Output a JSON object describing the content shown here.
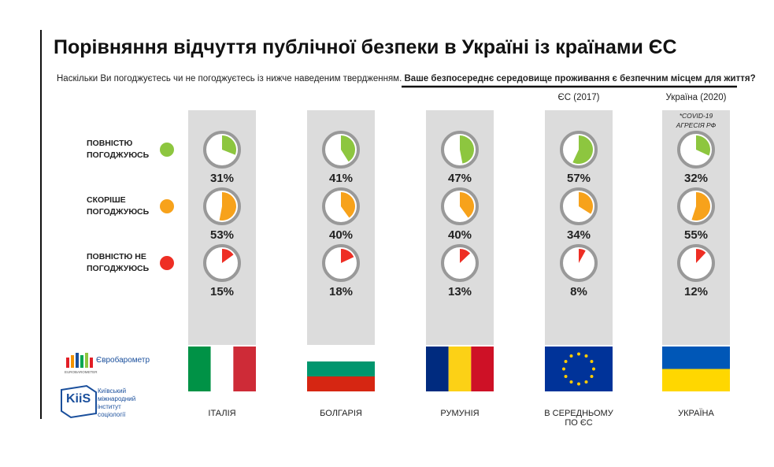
{
  "chart_data": {
    "type": "gauge",
    "title": "Порівняння відчуття публічної безпеки в Україні із країнами ЄС",
    "subtitle": "Наскільки Ви погоджуєтесь чи не погоджуєтесь із нижче наведеним твердженням.",
    "question": "Ваше безпосереднє середовище проживання є безпечним місцем для життя?",
    "categories": [
      "ІТАЛІЯ",
      "БОЛГАРІЯ",
      "РУМУНІЯ",
      "В СЕРЕДНЬОМУ ПО ЄС",
      "УКРАЇНА"
    ],
    "column_headers": [
      null,
      null,
      null,
      "ЄС (2017)",
      "Україна (2020)"
    ],
    "note": [
      "*COVID-19",
      "АГРЕСІЯ РФ"
    ],
    "series": [
      {
        "name": "ПОВНІСТЮ ПОГОДЖУЮСЬ",
        "color": "#8dc63f",
        "values": [
          31,
          41,
          47,
          57,
          32
        ],
        "value_labels": [
          "31%",
          "41%",
          "47%",
          "57%",
          "32%"
        ]
      },
      {
        "name": "СКОРІШЕ ПОГОДЖУЮСЬ",
        "color": "#f7a21b",
        "values": [
          53,
          40,
          40,
          34,
          55
        ],
        "value_labels": [
          "53%",
          "40%",
          "40%",
          "34%",
          "55%"
        ]
      },
      {
        "name": "ПОВНІСТЮ НЕ ПОГОДЖУЮСЬ",
        "color": "#ee2e24",
        "values": [
          15,
          18,
          13,
          8,
          12
        ],
        "value_labels": [
          "15%",
          "18%",
          "13%",
          "8%",
          "12%"
        ]
      }
    ],
    "sources": {
      "eurobarometer": "Євробарометр",
      "eurobarometer_small": "EUROBAROMETER",
      "kiis": "KiiS",
      "kiis_name": "Київський міжнародний інститут соціології"
    }
  }
}
